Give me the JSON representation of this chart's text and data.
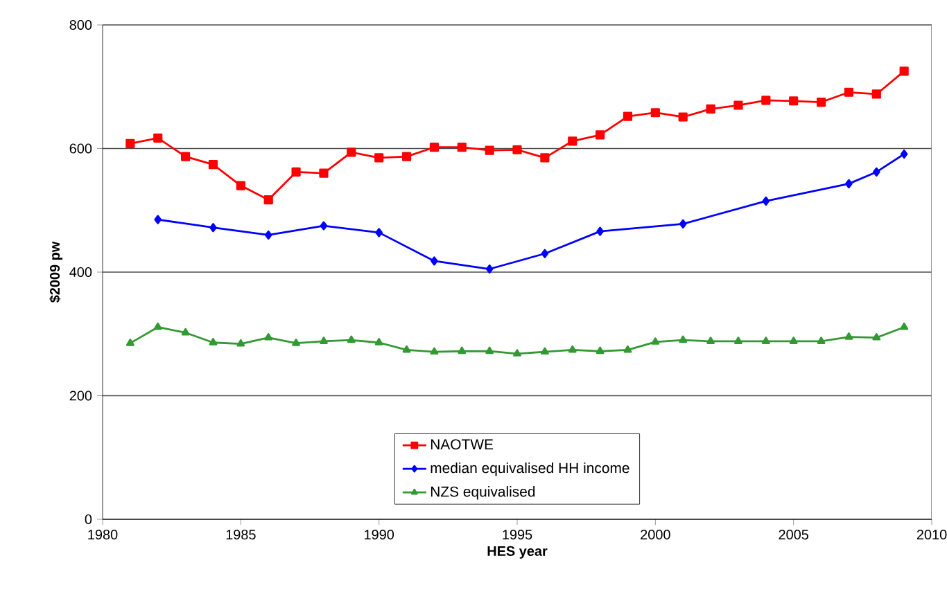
{
  "chart_data": {
    "type": "line",
    "xlabel": "HES year",
    "ylabel": "$2009 pw",
    "xlim": [
      1980,
      2010
    ],
    "xticks": [
      1980,
      1985,
      1990,
      1995,
      2000,
      2005,
      2010
    ],
    "ylim": [
      0,
      800
    ],
    "yticks": [
      0,
      200,
      400,
      600,
      800
    ],
    "grid": "y",
    "legend": "bottom",
    "line_style": "solid",
    "series": [
      {
        "name": "NAOTWE",
        "color": "#ff0000",
        "marker": "square",
        "x": [
          1981,
          1982,
          1983,
          1984,
          1985,
          1986,
          1987,
          1988,
          1989,
          1990,
          1991,
          1992,
          1993,
          1994,
          1995,
          1996,
          1997,
          1998,
          1999,
          2000,
          2001,
          2002,
          2003,
          2004,
          2005,
          2006,
          2007,
          2008,
          2009
        ],
        "values": [
          608,
          617,
          587,
          574,
          540,
          517,
          562,
          560,
          594,
          585,
          587,
          602,
          602,
          597,
          598,
          585,
          612,
          622,
          652,
          658,
          651,
          664,
          670,
          678,
          677,
          675,
          691,
          688,
          725
        ]
      },
      {
        "name": "median equivalised HH income",
        "color": "#0000ff",
        "marker": "diamond",
        "x": [
          1982,
          1984,
          1986,
          1988,
          1990,
          1992,
          1994,
          1996,
          1998,
          2001,
          2004,
          2007,
          2008,
          2009
        ],
        "values": [
          485,
          472,
          460,
          475,
          464,
          418,
          405,
          430,
          466,
          478,
          515,
          543,
          562,
          591
        ]
      },
      {
        "name": "NZS equivalised",
        "color": "#339933",
        "marker": "triangle",
        "x": [
          1981,
          1982,
          1983,
          1984,
          1985,
          1986,
          1987,
          1988,
          1989,
          1990,
          1991,
          1992,
          1993,
          1994,
          1995,
          1996,
          1997,
          1998,
          1999,
          2000,
          2001,
          2002,
          2003,
          2004,
          2005,
          2006,
          2007,
          2008,
          2009
        ],
        "values": [
          285,
          311,
          302,
          286,
          284,
          294,
          285,
          288,
          290,
          286,
          274,
          271,
          272,
          272,
          268,
          271,
          274,
          272,
          274,
          287,
          290,
          288,
          288,
          288,
          288,
          288,
          295,
          294,
          311
        ]
      }
    ]
  }
}
